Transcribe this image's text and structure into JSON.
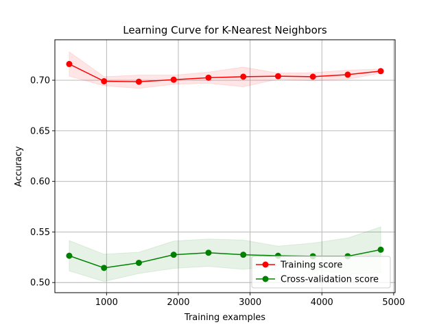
{
  "chart_data": {
    "type": "line",
    "title": "Learning Curve for K-Nearest Neighbors",
    "xlabel": "Training examples",
    "ylabel": "Accuracy",
    "xlim": [
      280,
      5020
    ],
    "ylim": [
      0.49,
      0.74
    ],
    "x_ticks": [
      1000,
      2000,
      3000,
      4000,
      5000
    ],
    "y_ticks": [
      0.5,
      0.55,
      0.6,
      0.65,
      0.7
    ],
    "x_tick_labels": [
      "1000",
      "2000",
      "3000",
      "4000",
      "5000"
    ],
    "y_tick_labels": [
      "0.50",
      "0.55",
      "0.60",
      "0.65",
      "0.70"
    ],
    "grid": true,
    "legend_position": "lower-right",
    "x": [
      480,
      965,
      1450,
      1935,
      2420,
      2905,
      3390,
      3875,
      4360,
      4820
    ],
    "series": [
      {
        "name": "Training score",
        "color": "#ff0000",
        "band_color": "#ff0000",
        "marker": "circle",
        "values": [
          0.716,
          0.699,
          0.6985,
          0.7005,
          0.7025,
          0.7035,
          0.704,
          0.7035,
          0.7055,
          0.709
        ],
        "band_lower": [
          0.704,
          0.6945,
          0.692,
          0.696,
          0.697,
          0.6935,
          0.701,
          0.6995,
          0.701,
          0.707
        ],
        "band_upper": [
          0.728,
          0.7035,
          0.705,
          0.705,
          0.708,
          0.713,
          0.707,
          0.7075,
          0.71,
          0.711
        ]
      },
      {
        "name": "Cross-validation score",
        "color": "#008000",
        "band_color": "#008000",
        "marker": "circle",
        "values": [
          0.5265,
          0.5145,
          0.5195,
          0.5275,
          0.5295,
          0.5275,
          0.5265,
          0.526,
          0.526,
          0.5325
        ],
        "band_lower": [
          0.5115,
          0.501,
          0.509,
          0.514,
          0.516,
          0.513,
          0.517,
          0.513,
          0.508,
          0.51
        ],
        "band_upper": [
          0.5415,
          0.528,
          0.53,
          0.541,
          0.543,
          0.542,
          0.536,
          0.539,
          0.544,
          0.555
        ]
      }
    ]
  }
}
